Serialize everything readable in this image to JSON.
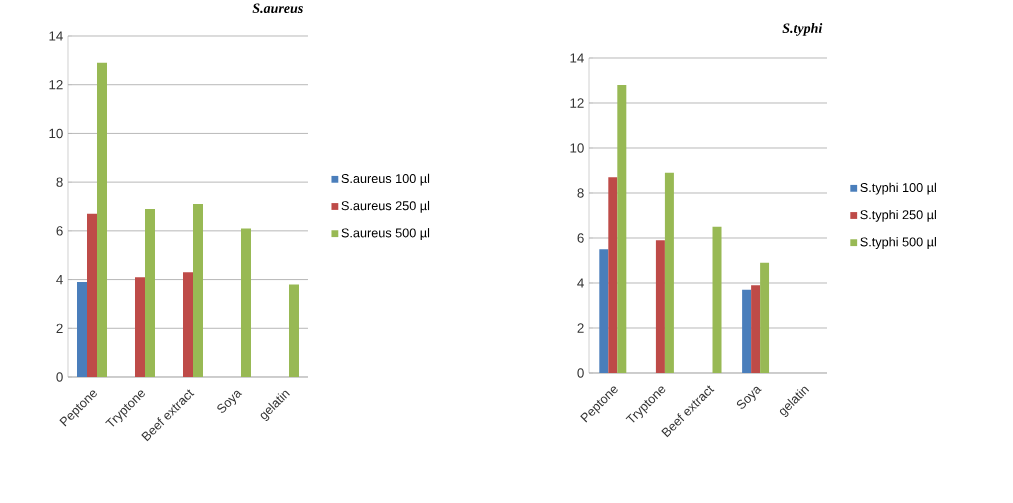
{
  "chart_data": [
    {
      "type": "bar",
      "title": "*S.aureus*",
      "categories": [
        "Peptone",
        "Tryptone",
        "Beef extract",
        "Soya",
        "gelatin"
      ],
      "series": [
        {
          "name": "S.aureus 100 µl",
          "color": "#4a7ebb",
          "values": [
            3.9,
            null,
            null,
            null,
            null
          ]
        },
        {
          "name": "S.aureus 250 µl",
          "color": "#be4b48",
          "values": [
            6.7,
            4.1,
            4.3,
            null,
            null
          ]
        },
        {
          "name": "S.aureus 500 µl",
          "color": "#98b954",
          "values": [
            12.9,
            6.9,
            7.1,
            6.1,
            3.8
          ]
        }
      ],
      "ylim": [
        0,
        14
      ],
      "yticks": [
        0,
        2,
        4,
        6,
        8,
        10,
        12,
        14
      ],
      "grid": "y",
      "legend": "right"
    },
    {
      "type": "bar",
      "title": "*S.typhi*",
      "categories": [
        "Peptone",
        "Tryptone",
        "Beef extract",
        "Soya",
        "gelatin"
      ],
      "series": [
        {
          "name": "S.typhi 100 µl",
          "color": "#4a7ebb",
          "values": [
            5.5,
            null,
            null,
            3.7,
            null
          ]
        },
        {
          "name": "S.typhi 250 µl",
          "color": "#be4b48",
          "values": [
            8.7,
            5.9,
            null,
            3.9,
            null
          ]
        },
        {
          "name": "S.typhi 500 µl",
          "color": "#98b954",
          "values": [
            12.8,
            8.9,
            6.5,
            4.9,
            null
          ]
        }
      ],
      "ylim": [
        0,
        14
      ],
      "yticks": [
        0,
        2,
        4,
        6,
        8,
        10,
        12,
        14
      ],
      "grid": "y",
      "legend": "right"
    }
  ]
}
